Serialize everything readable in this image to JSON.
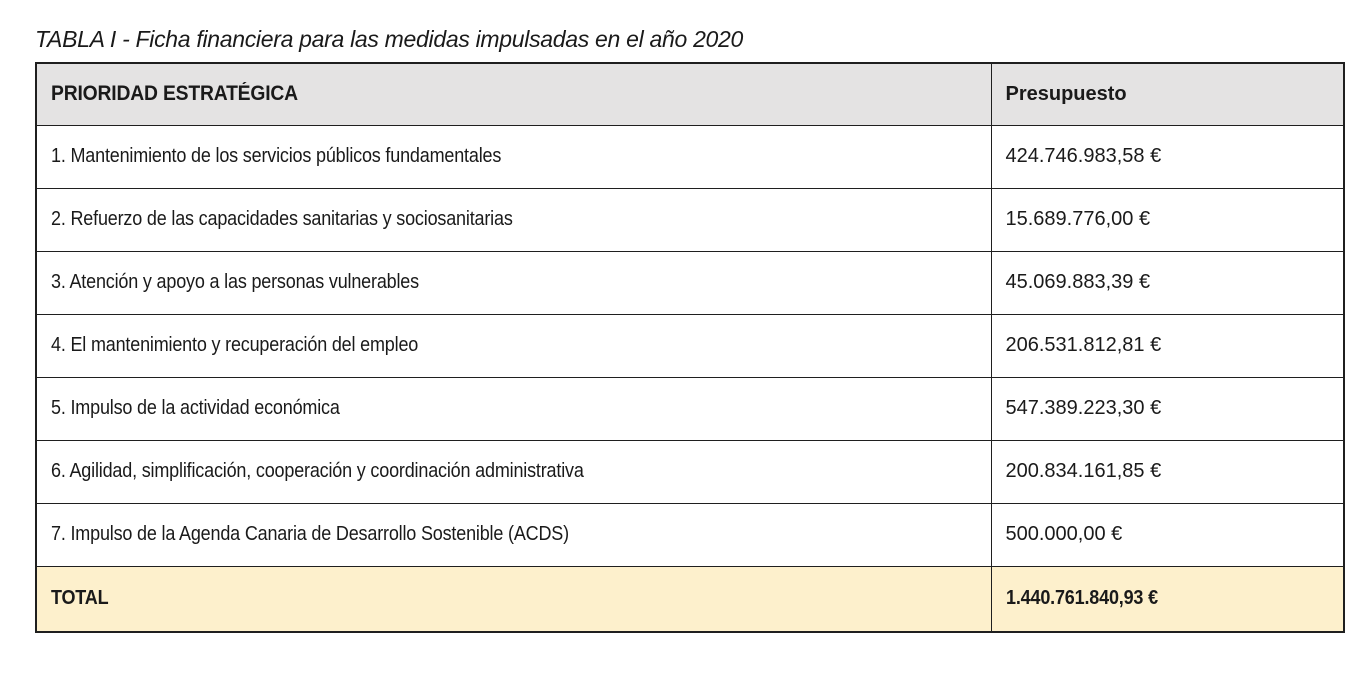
{
  "page": {
    "title": "TABLA I - Ficha financiera para las medidas impulsadas en el año 2020"
  },
  "table": {
    "columns": {
      "priority": "PRIORIDAD ESTRATÉGICA",
      "budget": "Presupuesto"
    },
    "rows": [
      {
        "priority": "1. Mantenimiento de los servicios públicos fundamentales",
        "budget": "424.746.983,58 €"
      },
      {
        "priority": "2. Refuerzo de las capacidades sanitarias y sociosanitarias",
        "budget": "15.689.776,00 €"
      },
      {
        "priority": "3. Atención y apoyo a las personas vulnerables",
        "budget": "45.069.883,39 €"
      },
      {
        "priority": "4. El mantenimiento y recuperación del empleo",
        "budget": "206.531.812,81 €"
      },
      {
        "priority": "5. Impulso de la actividad económica",
        "budget": "547.389.223,30 €"
      },
      {
        "priority": "6. Agilidad, simplificación, cooperación y coordinación administrativa",
        "budget": "200.834.161,85 €"
      },
      {
        "priority": "7. Impulso de la Agenda Canaria de Desarrollo Sostenible (ACDS)",
        "budget": "500.000,00 €"
      }
    ],
    "total": {
      "label": "TOTAL",
      "budget": "1.440.761.840,93 €"
    }
  },
  "colors": {
    "header_bg": "#e4e3e3",
    "total_bg": "#fdf0cc",
    "border": "#1f1f1f"
  }
}
